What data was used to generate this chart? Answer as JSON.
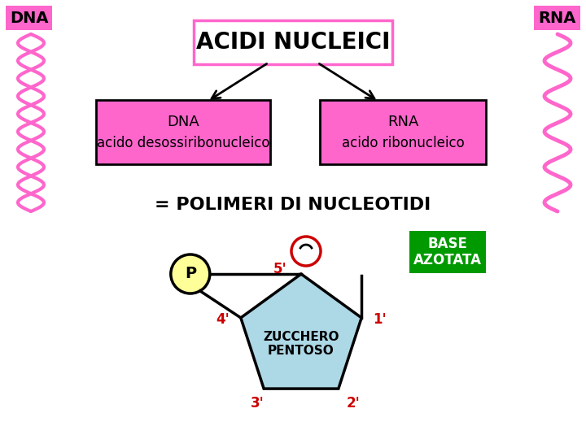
{
  "title": "ACIDI NUCLEICI",
  "title_box_edge_color": "#FF66CC",
  "title_bg_color": "#FFFFFF",
  "title_text_color": "#000000",
  "dna_box_text_line1": "DNA",
  "dna_box_text_line2": "acido desossiribonucleico",
  "rna_box_text_line1": "RNA",
  "rna_box_text_line2": "acido ribonucleico",
  "box_fill_color": "#FF66CC",
  "box_edge_color": "#000000",
  "box_text_color": "#000000",
  "dna_label": "DNA",
  "rna_label": "RNA",
  "label_bg_color": "#FF66CC",
  "label_text_color": "#000000",
  "polimeri_text": "= POLIMERI DI NUCLEOTIDI",
  "polimeri_color": "#000000",
  "pentagon_fill": "#ADD8E6",
  "pentagon_edge": "#000000",
  "pentagon_label": "ZUCCHERO\nPENTOSO",
  "p_circle_fill": "#FFFF99",
  "p_circle_edge": "#000000",
  "p_label": "P",
  "base_box_fill": "#009900",
  "base_box_text": "BASE\nAZOTATA",
  "base_box_text_color": "#FFFFFF",
  "positions_color": "#CC0000",
  "ring_edge_color": "#CC0000",
  "helix_color": "#FF66CC",
  "bg_color": "#FFFFFF",
  "arrow_color": "#000000"
}
